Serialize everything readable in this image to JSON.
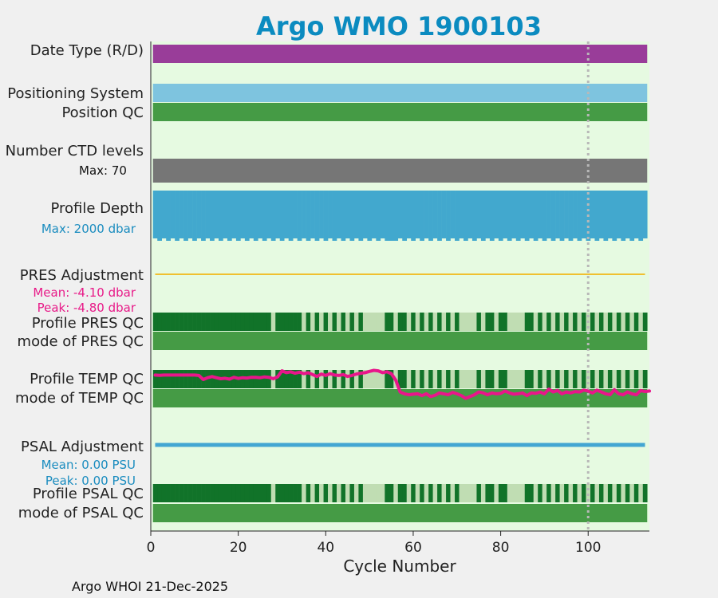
{
  "chart_data": {
    "type": "timeline",
    "title": "Argo WMO 1900103",
    "xlabel": "Cycle Number",
    "xlim": [
      0,
      114
    ],
    "xticks": [
      "0",
      "20",
      "40",
      "60",
      "80",
      "100"
    ],
    "xtick_values": [
      0,
      20,
      40,
      60,
      80,
      100
    ],
    "marker_cycle": 100,
    "footer": "Argo WHOI 21-Dec-2025",
    "rows": {
      "date_type": "Date Type (R/D)",
      "positioning_system": "Positioning System",
      "position_qc": "Position QC",
      "num_ctd_levels": "Number CTD levels",
      "ctd_max": "Max: 70",
      "profile_depth": "Profile Depth",
      "depth_max": "Max: 2000 dbar",
      "pres_adjustment": "PRES Adjustment",
      "pres_mean": "Mean: -4.10 dbar",
      "pres_peak": "Peak: -4.80 dbar",
      "profile_pres_qc": "Profile PRES QC",
      "mode_pres_qc": "mode of PRES QC",
      "profile_temp_qc": "Profile TEMP QC",
      "mode_temp_qc": "mode of TEMP QC",
      "psal_adjustment": "PSAL Adjustment",
      "psal_mean": "Mean: 0.00 PSU",
      "psal_peak": "Peak: 0.00 PSU",
      "profile_psal_qc": "Profile PSAL QC",
      "mode_psal_qc": "mode of PSAL QC"
    },
    "qc_light_cycles": [
      28,
      35,
      37,
      39,
      41,
      43,
      45,
      47,
      49,
      50,
      51,
      52,
      53,
      56,
      59,
      61,
      63,
      65,
      67,
      69,
      71,
      72,
      73,
      74,
      76,
      79,
      82,
      83,
      84,
      85,
      88,
      90,
      92,
      94,
      96,
      98,
      100,
      102,
      104,
      106,
      108,
      110,
      112
    ],
    "shallow_cycles": [
      1,
      3,
      5,
      7,
      9,
      11,
      13,
      15,
      17,
      19,
      21,
      23,
      25,
      27,
      29,
      31,
      33,
      35,
      37,
      39,
      41,
      43,
      45,
      47,
      49,
      51,
      53,
      57,
      59,
      61,
      63,
      65,
      67,
      69,
      71,
      73,
      75,
      77,
      79,
      81,
      83,
      85,
      87,
      89,
      91,
      93,
      95,
      97,
      99,
      101,
      103,
      105,
      107,
      109,
      111,
      113
    ],
    "temp_adjustment_fraction": [
      0.28,
      0.29,
      0.28,
      0.28,
      0.28,
      0.28,
      0.28,
      0.28,
      0.28,
      0.28,
      0.3,
      0.52,
      0.42,
      0.36,
      0.42,
      0.48,
      0.45,
      0.5,
      0.4,
      0.46,
      0.42,
      0.44,
      0.4,
      0.4,
      0.42,
      0.38,
      0.4,
      0.48,
      0.38,
      0.05,
      0.15,
      0.1,
      0.18,
      0.12,
      0.2,
      0.15,
      0.25,
      0.35,
      0.22,
      0.3,
      0.2,
      0.28,
      0.3,
      0.25,
      0.35,
      0.3,
      0.22,
      0.18,
      0.15,
      0.08,
      0.02,
      0.05,
      0.15,
      0.1,
      0.2,
      0.55,
      1.2,
      1.3,
      1.35,
      1.32,
      1.3,
      1.4,
      1.3,
      1.45,
      1.38,
      1.25,
      1.3,
      1.35,
      1.22,
      1.3,
      1.4,
      1.55,
      1.45,
      1.35,
      1.2,
      1.25,
      1.35,
      1.25,
      1.3,
      1.28,
      1.15,
      1.25,
      1.32,
      1.3,
      1.25,
      1.4,
      1.25,
      1.28,
      1.2,
      1.3,
      1.05,
      1.2,
      1.12,
      1.3,
      1.2,
      1.25,
      1.18,
      1.2,
      1.1,
      1.15,
      1.25,
      1.1,
      1.2,
      1.3,
      1.35,
      1.08,
      1.3,
      1.35,
      1.2,
      1.3,
      1.35,
      1.12,
      1.18,
      1.15
    ]
  },
  "colors": {
    "background": "#f0f0f0",
    "panel": "#e6fae1",
    "title": "#0b8bc0",
    "date_type": "#993d99",
    "positioning": "#7ec4df",
    "qc_medium": "#459b45",
    "qc_dark": "#117329",
    "qc_light": "#c0ddb3",
    "ctd": "#767676",
    "depth": "#42a8ce",
    "pres_adj": "#f0c030",
    "psal_adj": "#43a6d2",
    "temp_adj": "#e8168a",
    "annotation_blue": "#1a8cbf",
    "annotation_pink": "#e81a88",
    "marker": "#b8b8b8"
  }
}
